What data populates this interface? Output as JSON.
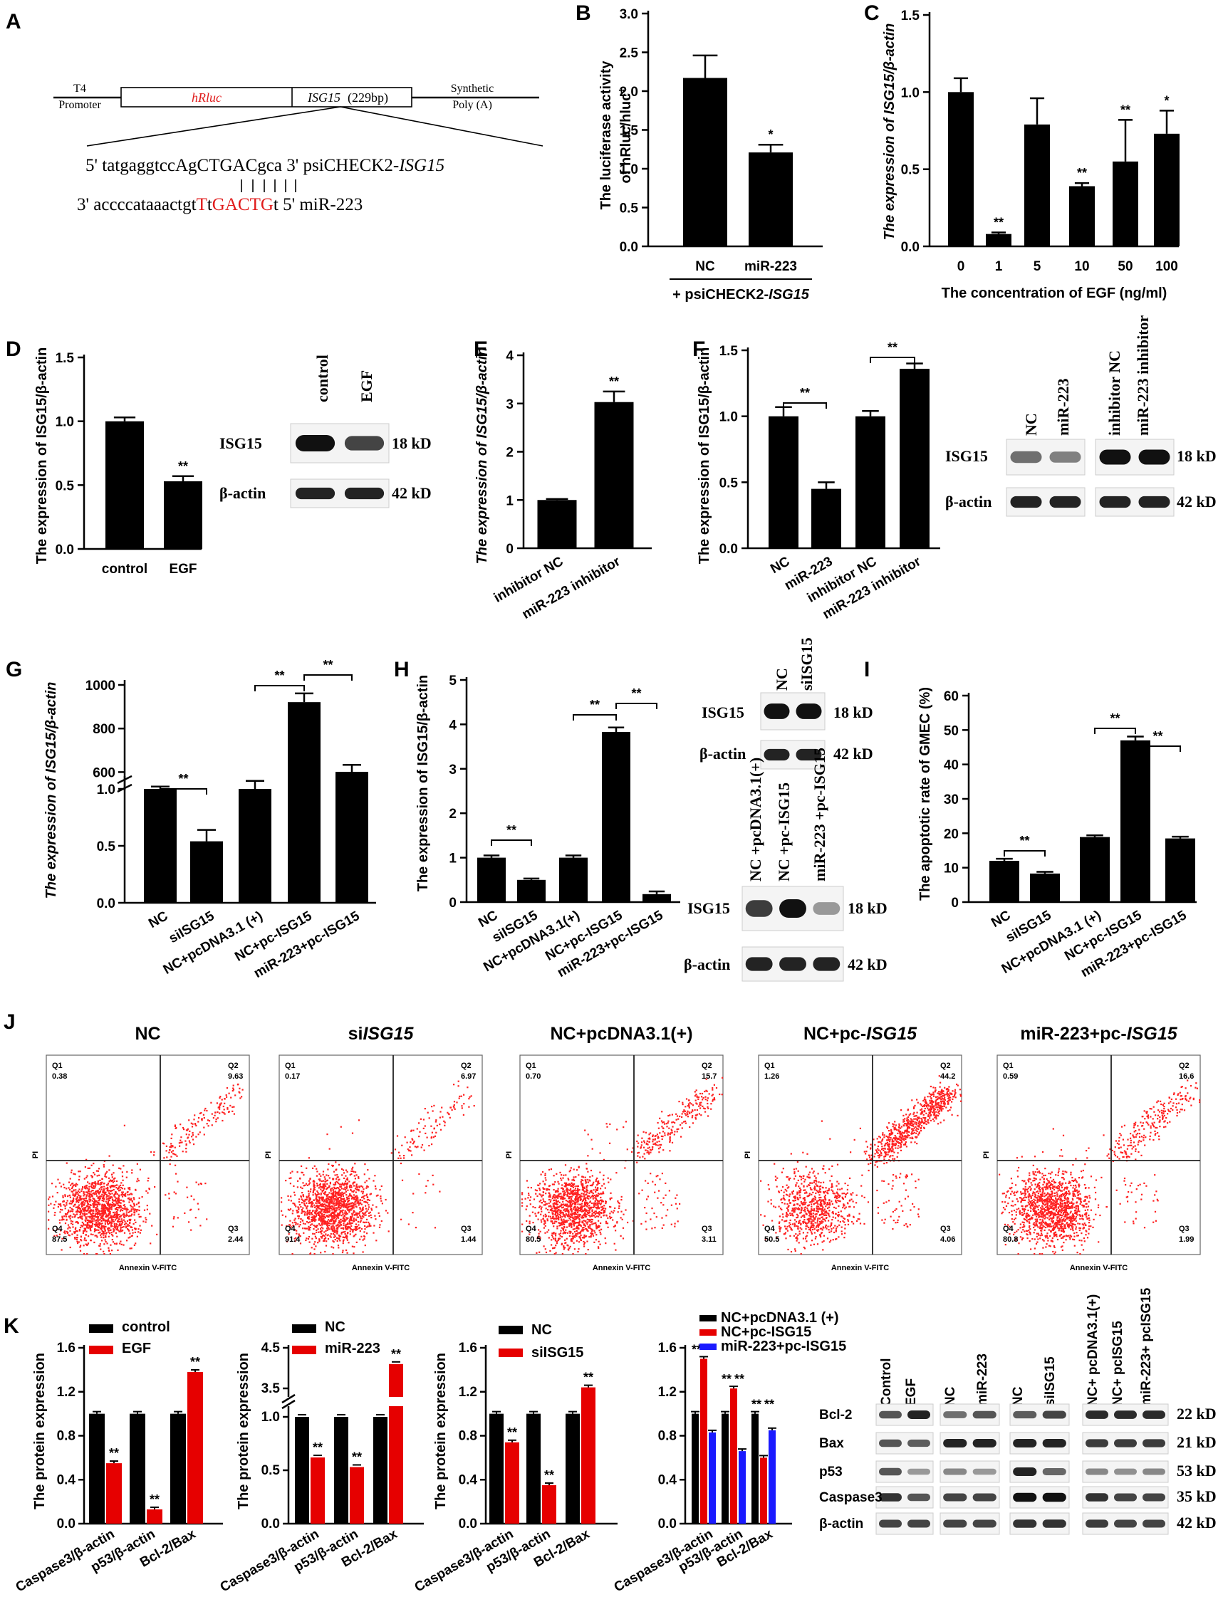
{
  "panel_letters": [
    "A",
    "B",
    "C",
    "D",
    "E",
    "F",
    "G",
    "H",
    "I",
    "J",
    "K"
  ],
  "diagram_a": {
    "promoter": [
      "T4",
      "Promoter"
    ],
    "hrluc": "hRluc",
    "isg15": "ISG15",
    "isg15_size": " (229bp)",
    "synthetic": [
      "Synthetic",
      "Poly (A)"
    ],
    "seq_top_prefix": "5' tatgaggtccA",
    "seq_top_mid": "gCTGAC",
    "seq_top_suffix": "gca 3' psiCHECK2-",
    "seq_top_gene": "ISG15",
    "seq_bottom_prefix": "3' accccataaactgt",
    "seq_bottom_red1": "T",
    "seq_bottom_mid": "t",
    "seq_bottom_red2": "GACTG",
    "seq_bottom_suffix": "t 5' miR-223"
  },
  "colors": {
    "black": "#000000",
    "red": "#e60000",
    "blue": "#1a1aff",
    "seqred": "#e01b1b"
  },
  "charts": {
    "B": {
      "ylabel1": "The luciferase activity",
      "ylabel2": "of hRluc/hluc",
      "ylabel_sup": "+",
      "ticks": [
        "0.0",
        "0.5",
        "1.0",
        "1.5",
        "2.0",
        "2.5",
        "3.0"
      ],
      "ylim": [
        0,
        3.0
      ],
      "categories": [
        "NC",
        "miR-223"
      ],
      "values": [
        2.17,
        1.21
      ],
      "errors": [
        0.29,
        0.1
      ],
      "sig": [
        "",
        "*"
      ],
      "footer": "+ psiCHECK2-",
      "footer_gene": "ISG15"
    },
    "C": {
      "ylabel": "The expression of ISG15/β-actin",
      "ticks": [
        "0.0",
        "0.5",
        "1.0",
        "1.5"
      ],
      "ylim": [
        0,
        1.5
      ],
      "categories": [
        "0",
        "1",
        "5",
        "10",
        "50",
        "100"
      ],
      "values": [
        1.0,
        0.08,
        0.79,
        0.39,
        0.55,
        0.73
      ],
      "errors": [
        0.09,
        0.01,
        0.17,
        0.02,
        0.27,
        0.15
      ],
      "sig": [
        "",
        "**",
        "",
        "**",
        "**",
        "*"
      ],
      "xlabel": "The concentration of EGF (ng/ml)"
    },
    "D": {
      "ylabel": "The expression of ISG15/β-actin",
      "ticks": [
        "0.0",
        "0.5",
        "1.0",
        "1.5"
      ],
      "ylim": [
        0,
        1.5
      ],
      "categories": [
        "control",
        "EGF"
      ],
      "values": [
        1.0,
        0.53
      ],
      "errors": [
        0.03,
        0.04
      ],
      "sig": [
        "",
        "**"
      ],
      "blot_cols": [
        "control",
        "EGF"
      ],
      "blot_rows": [
        {
          "label": "ISG15",
          "size": "18 kD"
        },
        {
          "label": "β-actin",
          "size": "42 kD"
        }
      ]
    },
    "E": {
      "ylabel": "The expression of ISG15/β-actin",
      "ticks": [
        "0",
        "1",
        "2",
        "3",
        "4"
      ],
      "ylim": [
        0,
        4
      ],
      "categories": [
        "inhibitor NC",
        "miR-223 inhibitor"
      ],
      "values": [
        1.0,
        3.03
      ],
      "errors": [
        0.02,
        0.22
      ],
      "sig": [
        "",
        "**"
      ]
    },
    "F": {
      "ylabel": "The expression of ISG15/β-actin",
      "ticks": [
        "0.0",
        "0.5",
        "1.0",
        "1.5"
      ],
      "ylim": [
        0,
        1.5
      ],
      "categories": [
        "NC",
        "miR-223",
        "inhibitor NC",
        "miR-223 inhibitor"
      ],
      "values": [
        1.0,
        0.45,
        1.0,
        1.36
      ],
      "errors": [
        0.07,
        0.05,
        0.04,
        0.04
      ],
      "brackets": [
        "**",
        "**"
      ],
      "blot_cols": [
        "NC",
        "miR-223",
        "inhibitor NC",
        "miR-223 inhibitor"
      ],
      "blot_rows": [
        {
          "label": "ISG15",
          "size": "18 kD"
        },
        {
          "label": "β-actin",
          "size": "42 kD"
        }
      ]
    },
    "G": {
      "ylabel": "The expression of ISG15/β-actin",
      "ticks_low": [
        "0.0",
        "0.5",
        "1.0"
      ],
      "ticks_high": [
        "600",
        "800",
        "1000"
      ],
      "categories": [
        "NC",
        "siISG15",
        "NC+pcDNA3.1 (+)",
        "NC+pc-ISG15",
        "miR-223+pc-ISG15"
      ],
      "values": [
        1.0,
        0.54,
        1.0,
        921,
        598
      ],
      "errors": [
        0.02,
        0.1,
        0.07,
        40,
        35
      ],
      "brackets": [
        "**",
        "**",
        "**"
      ]
    },
    "H": {
      "ylabel": "The expression of ISG15/β-actin",
      "ticks": [
        "0",
        "1",
        "2",
        "3",
        "4",
        "5"
      ],
      "ylim": [
        0,
        5
      ],
      "categories": [
        "NC",
        "siISG15",
        "NC+pcDNA3.1(+)",
        "NC+pc-ISG15",
        "miR-223+pc-ISG15"
      ],
      "values": [
        1.0,
        0.5,
        1.0,
        3.83,
        0.18
      ],
      "errors": [
        0.05,
        0.03,
        0.05,
        0.1,
        0.06
      ],
      "brackets": [
        "**",
        "**",
        "**"
      ],
      "blot1_cols": [
        "NC",
        "siISG15"
      ],
      "blot2_cols": [
        "NC +pcDNA3.1(+)",
        "NC +pc-ISG15",
        "miR-223 +pc-ISG15"
      ],
      "blot_rows": [
        {
          "label": "ISG15",
          "size": "18 kD"
        },
        {
          "label": "β-actin",
          "size": "42 kD"
        }
      ]
    },
    "I": {
      "ylabel": "The apoptotic rate of GMEC (%)",
      "ticks": [
        "0",
        "10",
        "20",
        "30",
        "40",
        "50",
        "60"
      ],
      "ylim": [
        0,
        60
      ],
      "categories": [
        "NC",
        "siISG15",
        "NC+pcDNA3.1 (+)",
        "NC+pc-ISG15",
        "miR-223+pc-ISG15"
      ],
      "values": [
        12.0,
        8.3,
        18.9,
        47.0,
        18.5
      ],
      "errors": [
        0.6,
        0.5,
        0.5,
        1.1,
        0.5
      ],
      "brackets": [
        "**",
        "**",
        "**"
      ]
    },
    "K1": {
      "ylabel": "The protein expression",
      "ticks": [
        "0.0",
        "0.4",
        "0.8",
        "1.2",
        "1.6"
      ],
      "ylim": [
        0,
        1.6
      ],
      "categories": [
        "Caspase3/β-actin",
        "p53/β-actin",
        "Bcl-2/Bax"
      ],
      "series": [
        {
          "name": "control",
          "values": [
            1.0,
            1.0,
            1.0
          ]
        },
        {
          "name": "EGF",
          "values": [
            0.55,
            0.13,
            1.38
          ]
        }
      ],
      "sig": [
        "**",
        "**",
        "**"
      ]
    },
    "K2": {
      "ylabel": "The protein expression",
      "ticks_low": [
        "0.0",
        "0.5",
        "1.0"
      ],
      "ticks_high": [
        "3.5",
        "4.5"
      ],
      "categories": [
        "Caspase3/β-actin",
        "p53/β-actin",
        "Bcl-2/Bax"
      ],
      "series": [
        {
          "name": "NC",
          "values": [
            1.0,
            1.0,
            1.0
          ]
        },
        {
          "name": "miR-223",
          "values": [
            0.62,
            0.53,
            4.1
          ]
        }
      ],
      "sig": [
        "**",
        "**",
        "**"
      ]
    },
    "K3": {
      "ylabel": "The protein expression",
      "ticks": [
        "0.0",
        "0.4",
        "0.8",
        "1.2",
        "1.6"
      ],
      "ylim": [
        0,
        1.6
      ],
      "categories": [
        "Caspase3/β-actin",
        "p53/β-actin",
        "Bcl-2/Bax"
      ],
      "series": [
        {
          "name": "NC",
          "values": [
            1.0,
            1.0,
            1.0
          ]
        },
        {
          "name": "siISG15",
          "values": [
            0.74,
            0.35,
            1.24
          ]
        }
      ],
      "sig": [
        "**",
        "**",
        "**"
      ]
    },
    "K4": {
      "ticks": [
        "0.0",
        "0.4",
        "0.8",
        "1.2",
        "1.6"
      ],
      "ylim": [
        0,
        1.6
      ],
      "categories": [
        "Caspase3/β-actin",
        "p53/β-actin",
        "Bcl-2/Bax"
      ],
      "series": [
        {
          "name": "NC+pcDNA3.1 (+)",
          "values": [
            1.0,
            1.0,
            1.0
          ]
        },
        {
          "name": "NC+pc-ISG15",
          "values": [
            1.5,
            1.23,
            0.6
          ]
        },
        {
          "name": "miR-223+pc-ISG15",
          "values": [
            0.83,
            0.66,
            0.85
          ]
        }
      ],
      "sig": [
        "**",
        "**"
      ]
    },
    "K5": {
      "cols": [
        "Control",
        "EGF",
        "NC",
        "miR-223",
        "NC",
        "siISG15",
        "NC+ pcDNA3.1(+)",
        "NC+ pcISG15",
        "miR-223+ pcISG15"
      ],
      "rows": [
        {
          "label": "Bcl-2",
          "size": "22 kD"
        },
        {
          "label": "Bax",
          "size": "21 kD"
        },
        {
          "label": "p53",
          "size": "53 kD"
        },
        {
          "label": "Caspase3",
          "size": "35 kD"
        },
        {
          "label": "β-actin",
          "size": "42 kD"
        }
      ]
    }
  },
  "chart_data": [
    {
      "type": "bar",
      "panel": "B",
      "title": "",
      "categories": [
        "NC",
        "miR-223"
      ],
      "values": [
        2.17,
        1.21
      ],
      "ylabel": "The luciferase activity of hRluc/hluc+",
      "ylim": [
        0,
        3.0
      ]
    },
    {
      "type": "bar",
      "panel": "C",
      "categories": [
        "0",
        "1",
        "5",
        "10",
        "50",
        "100"
      ],
      "values": [
        1.0,
        0.08,
        0.79,
        0.39,
        0.55,
        0.73
      ],
      "xlabel": "The concentration of EGF (ng/ml)",
      "ylabel": "The expression of ISG15/β-actin",
      "ylim": [
        0,
        1.5
      ]
    },
    {
      "type": "bar",
      "panel": "D",
      "categories": [
        "control",
        "EGF"
      ],
      "values": [
        1.0,
        0.53
      ],
      "ylabel": "The expression of ISG15/β-actin",
      "ylim": [
        0,
        1.5
      ]
    },
    {
      "type": "bar",
      "panel": "E",
      "categories": [
        "inhibitor NC",
        "miR-223 inhibitor"
      ],
      "values": [
        1.0,
        3.03
      ],
      "ylabel": "The expression of ISG15/β-actin",
      "ylim": [
        0,
        4
      ]
    },
    {
      "type": "bar",
      "panel": "F",
      "categories": [
        "NC",
        "miR-223",
        "inhibitor NC",
        "miR-223 inhibitor"
      ],
      "values": [
        1.0,
        0.45,
        1.0,
        1.36
      ],
      "ylabel": "The expression of ISG15/β-actin",
      "ylim": [
        0,
        1.5
      ]
    },
    {
      "type": "bar",
      "panel": "G",
      "categories": [
        "NC",
        "siISG15",
        "NC+pcDNA3.1 (+)",
        "NC+pc-ISG15",
        "miR-223+pc-ISG15"
      ],
      "values": [
        1.0,
        0.54,
        1.0,
        921,
        598
      ],
      "ylabel": "The expression of ISG15/β-actin",
      "ylim": [
        0,
        1000
      ]
    },
    {
      "type": "bar",
      "panel": "H",
      "categories": [
        "NC",
        "siISG15",
        "NC+pcDNA3.1(+)",
        "NC+pc-ISG15",
        "miR-223+pc-ISG15"
      ],
      "values": [
        1.0,
        0.5,
        1.0,
        3.83,
        0.18
      ],
      "ylabel": "The expression of ISG15/β-actin",
      "ylim": [
        0,
        5
      ]
    },
    {
      "type": "bar",
      "panel": "I",
      "categories": [
        "NC",
        "siISG15",
        "NC+pcDNA3.1 (+)",
        "NC+pc-ISG15",
        "miR-223+pc-ISG15"
      ],
      "values": [
        12.0,
        8.3,
        18.9,
        47.0,
        18.5
      ],
      "ylabel": "The apoptotic rate of GMEC (%)",
      "ylim": [
        0,
        60
      ]
    },
    {
      "type": "bar",
      "panel": "K1",
      "categories": [
        "Caspase3/β-actin",
        "p53/β-actin",
        "Bcl-2/Bax"
      ],
      "series": [
        {
          "name": "control",
          "values": [
            1.0,
            1.0,
            1.0
          ]
        },
        {
          "name": "EGF",
          "values": [
            0.55,
            0.13,
            1.38
          ]
        }
      ],
      "ylim": [
        0,
        1.6
      ]
    },
    {
      "type": "bar",
      "panel": "K2",
      "categories": [
        "Caspase3/β-actin",
        "p53/β-actin",
        "Bcl-2/Bax"
      ],
      "series": [
        {
          "name": "NC",
          "values": [
            1.0,
            1.0,
            1.0
          ]
        },
        {
          "name": "miR-223",
          "values": [
            0.62,
            0.53,
            4.1
          ]
        }
      ],
      "ylim": [
        0,
        4.5
      ]
    },
    {
      "type": "bar",
      "panel": "K3",
      "categories": [
        "Caspase3/β-actin",
        "p53/β-actin",
        "Bcl-2/Bax"
      ],
      "series": [
        {
          "name": "NC",
          "values": [
            1.0,
            1.0,
            1.0
          ]
        },
        {
          "name": "siISG15",
          "values": [
            0.74,
            0.35,
            1.24
          ]
        }
      ],
      "ylim": [
        0,
        1.6
      ]
    },
    {
      "type": "bar",
      "panel": "K4",
      "categories": [
        "Caspase3/β-actin",
        "p53/β-actin",
        "Bcl-2/Bax"
      ],
      "series": [
        {
          "name": "NC+pcDNA3.1 (+)",
          "values": [
            1.0,
            1.0,
            1.0
          ]
        },
        {
          "name": "NC+pc-ISG15",
          "values": [
            1.5,
            1.23,
            0.6
          ]
        },
        {
          "name": "miR-223+pc-ISG15",
          "values": [
            0.83,
            0.66,
            0.85
          ]
        }
      ],
      "ylim": [
        0,
        1.6
      ]
    },
    {
      "type": "scatter",
      "panel": "J",
      "xlabel": "Annexin V-FITC",
      "ylabel": "PI",
      "plots": [
        {
          "title": "NC",
          "Q1": "0.38",
          "Q2": "9.63",
          "Q3": "2.44",
          "Q4": "87.5"
        },
        {
          "title": "siISG15",
          "Q1": "0.17",
          "Q2": "6.97",
          "Q3": "1.44",
          "Q4": "91.4"
        },
        {
          "title": "NC+pcDNA3.1(+)",
          "Q1": "0.70",
          "Q2": "15.7",
          "Q3": "3.11",
          "Q4": "80.5"
        },
        {
          "title": "NC+pc-ISG15",
          "Q1": "1.26",
          "Q2": "44.2",
          "Q3": "4.06",
          "Q4": "50.5"
        },
        {
          "title": "miR-223+pc-ISG15",
          "Q1": "0.59",
          "Q2": "16.6",
          "Q3": "1.99",
          "Q4": "80.8"
        }
      ]
    }
  ],
  "flow": {
    "xlabel": "Annexin V-FITC",
    "ylabel": "PI",
    "plots": [
      {
        "title_a": "NC",
        "title_b": "",
        "title_c": "",
        "Q1": "0.38",
        "Q2": "9.63",
        "Q3": "2.44",
        "Q4": "87.5"
      },
      {
        "title_a": "si",
        "title_b": "ISG15",
        "title_c": "",
        "Q1": "0.17",
        "Q2": "6.97",
        "Q3": "1.44",
        "Q4": "91.4"
      },
      {
        "title_a": "NC+pcDNA3.1(+)",
        "title_b": "",
        "title_c": "",
        "Q1": "0.70",
        "Q2": "15.7",
        "Q3": "3.11",
        "Q4": "80.5"
      },
      {
        "title_a": "NC+pc-",
        "title_b": "ISG15",
        "title_c": "",
        "Q1": "1.26",
        "Q2": "44.2",
        "Q3": "4.06",
        "Q4": "50.5"
      },
      {
        "title_a": "miR-223+pc-",
        "title_b": "ISG15",
        "title_c": "",
        "Q1": "0.59",
        "Q2": "16.6",
        "Q3": "1.99",
        "Q4": "80.8"
      }
    ],
    "q_labels": [
      "Q1",
      "Q2",
      "Q3",
      "Q4"
    ]
  }
}
